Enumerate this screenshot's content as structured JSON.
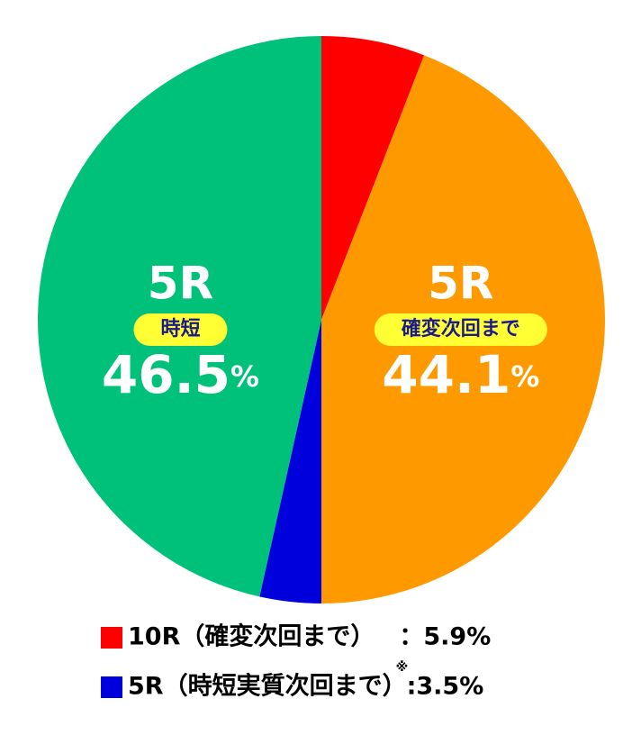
{
  "chart_data": {
    "type": "pie",
    "slices": [
      {
        "name": "10R（確変次回まで）",
        "value": 5.9,
        "value_label": "5.9%",
        "color": "#ff0000",
        "legend": true,
        "separator": "　："
      },
      {
        "name": "5R",
        "tag": "確変次回まで",
        "value": 44.1,
        "value_label": "44.1%",
        "color": "#ff9900",
        "legend": false
      },
      {
        "name": "5R（時短実質次回まで）",
        "value": 3.5,
        "value_label": "3.5%",
        "color": "#0000dd",
        "legend": true,
        "separator": ":",
        "note_mark": "※"
      },
      {
        "name": "5R",
        "tag": "時短",
        "value": 46.5,
        "value_label": "46.5%",
        "color": "#00c17a",
        "legend": false
      }
    ]
  }
}
